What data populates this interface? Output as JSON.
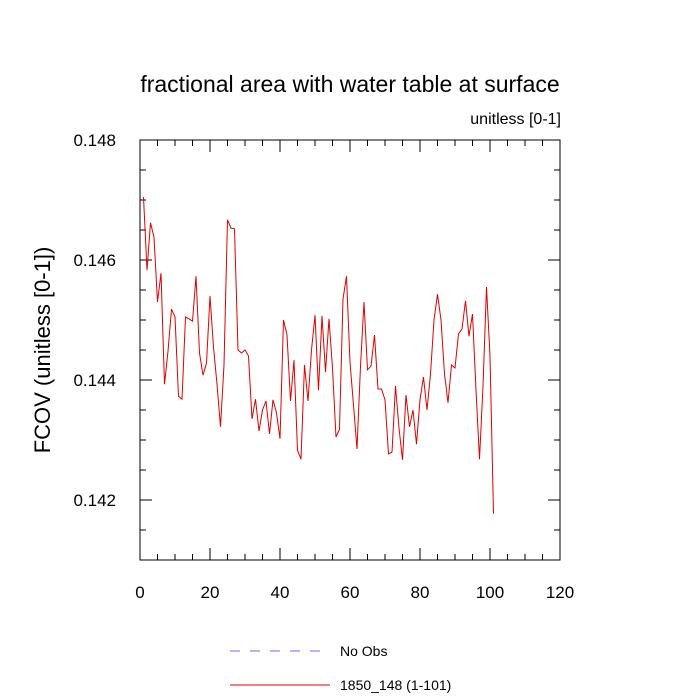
{
  "chart_data": {
    "type": "line",
    "title": "fractional area with water table at surface",
    "units_label": "unitless [0-1]",
    "xlabel": "",
    "ylabel": "FCOV  (unitless [0-1])",
    "xlim": [
      0,
      120
    ],
    "ylim": [
      0.141,
      0.148
    ],
    "x_ticks": [
      0,
      20,
      40,
      60,
      80,
      100,
      120
    ],
    "x_tick_labels": [
      "0",
      "20",
      "40",
      "60",
      "80",
      "100",
      "120"
    ],
    "y_ticks": [
      0.142,
      0.144,
      0.146,
      0.148
    ],
    "y_tick_labels": [
      "0.142",
      "0.144",
      "0.146",
      "0.148"
    ],
    "grid": false,
    "legend_position": "bottom-center",
    "series": [
      {
        "name": "No Obs",
        "color": "#6a6aff",
        "style": "dashed",
        "x": [],
        "values": []
      },
      {
        "name": "1850_148 (1-101)",
        "color": "#e00000",
        "style": "solid",
        "x": [
          1,
          2,
          3,
          4,
          5,
          6,
          7,
          8,
          9,
          10,
          11,
          12,
          13,
          14,
          15,
          16,
          17,
          18,
          19,
          20,
          21,
          22,
          23,
          24,
          25,
          26,
          27,
          28,
          29,
          30,
          31,
          32,
          33,
          34,
          35,
          36,
          37,
          38,
          39,
          40,
          41,
          42,
          43,
          44,
          45,
          46,
          47,
          48,
          49,
          50,
          51,
          52,
          53,
          54,
          55,
          56,
          57,
          58,
          59,
          60,
          61,
          62,
          63,
          64,
          65,
          66,
          67,
          68,
          69,
          70,
          71,
          72,
          73,
          74,
          75,
          76,
          77,
          78,
          79,
          80,
          81,
          82,
          83,
          84,
          85,
          86,
          87,
          88,
          89,
          90,
          91,
          92,
          93,
          94,
          95,
          96,
          97,
          98,
          99,
          100,
          101
        ],
        "values": [
          0.14705,
          0.14583,
          0.14662,
          0.14638,
          0.1453,
          0.14578,
          0.14393,
          0.14448,
          0.14518,
          0.14505,
          0.14373,
          0.14368,
          0.14505,
          0.14502,
          0.14498,
          0.14573,
          0.14445,
          0.14408,
          0.14428,
          0.1454,
          0.14455,
          0.14393,
          0.14322,
          0.14425,
          0.14667,
          0.14653,
          0.14652,
          0.1445,
          0.14445,
          0.1445,
          0.1444,
          0.14335,
          0.14368,
          0.14315,
          0.1435,
          0.14365,
          0.1431,
          0.14367,
          0.14345,
          0.14302,
          0.145,
          0.14475,
          0.14365,
          0.14433,
          0.14283,
          0.14268,
          0.14425,
          0.14365,
          0.1445,
          0.14508,
          0.14383,
          0.14507,
          0.14413,
          0.14502,
          0.1442,
          0.14305,
          0.14318,
          0.14535,
          0.14573,
          0.1443,
          0.14358,
          0.14285,
          0.14423,
          0.1453,
          0.14417,
          0.14423,
          0.14475,
          0.14385,
          0.14385,
          0.14367,
          0.14277,
          0.1428,
          0.1439,
          0.1432,
          0.14267,
          0.14375,
          0.14322,
          0.1435,
          0.14293,
          0.14367,
          0.14405,
          0.1435,
          0.1441,
          0.145,
          0.14543,
          0.145,
          0.1441,
          0.14362,
          0.14425,
          0.1442,
          0.14477,
          0.14485,
          0.14532,
          0.14473,
          0.1451,
          0.14383,
          0.14268,
          0.1439,
          0.14555,
          0.1444,
          0.14177
        ]
      }
    ]
  }
}
